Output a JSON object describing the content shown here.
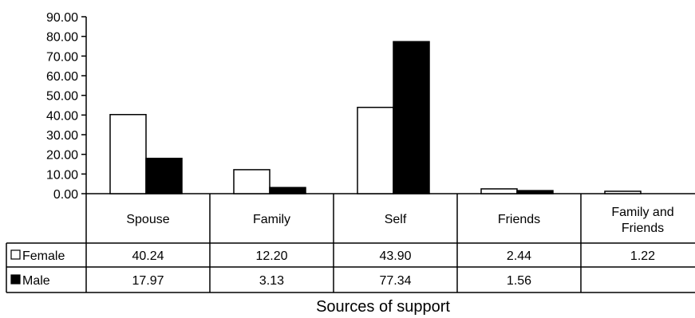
{
  "chart_data": {
    "type": "bar",
    "xlabel": "Sources of support",
    "ylabel": "",
    "ylim": [
      0,
      90
    ],
    "y_ticks": [
      "0.00",
      "10.00",
      "20.00",
      "30.00",
      "40.00",
      "50.00",
      "60.00",
      "70.00",
      "80.00",
      "90.00"
    ],
    "categories": [
      "Spouse",
      "Family",
      "Self",
      "Friends",
      "Family and Friends"
    ],
    "series": [
      {
        "name": "Female",
        "color": "#ffffff",
        "values": [
          40.24,
          12.2,
          43.9,
          2.44,
          1.22
        ],
        "labels": [
          "40.24",
          "12.20",
          "43.90",
          "2.44",
          "1.22"
        ]
      },
      {
        "name": "Male",
        "color": "#000000",
        "values": [
          17.97,
          3.13,
          77.34,
          1.56,
          null
        ],
        "labels": [
          "17.97",
          "3.13",
          "77.34",
          "1.56",
          ""
        ]
      }
    ],
    "data_table": true,
    "grid": false,
    "legend": "in data table"
  }
}
